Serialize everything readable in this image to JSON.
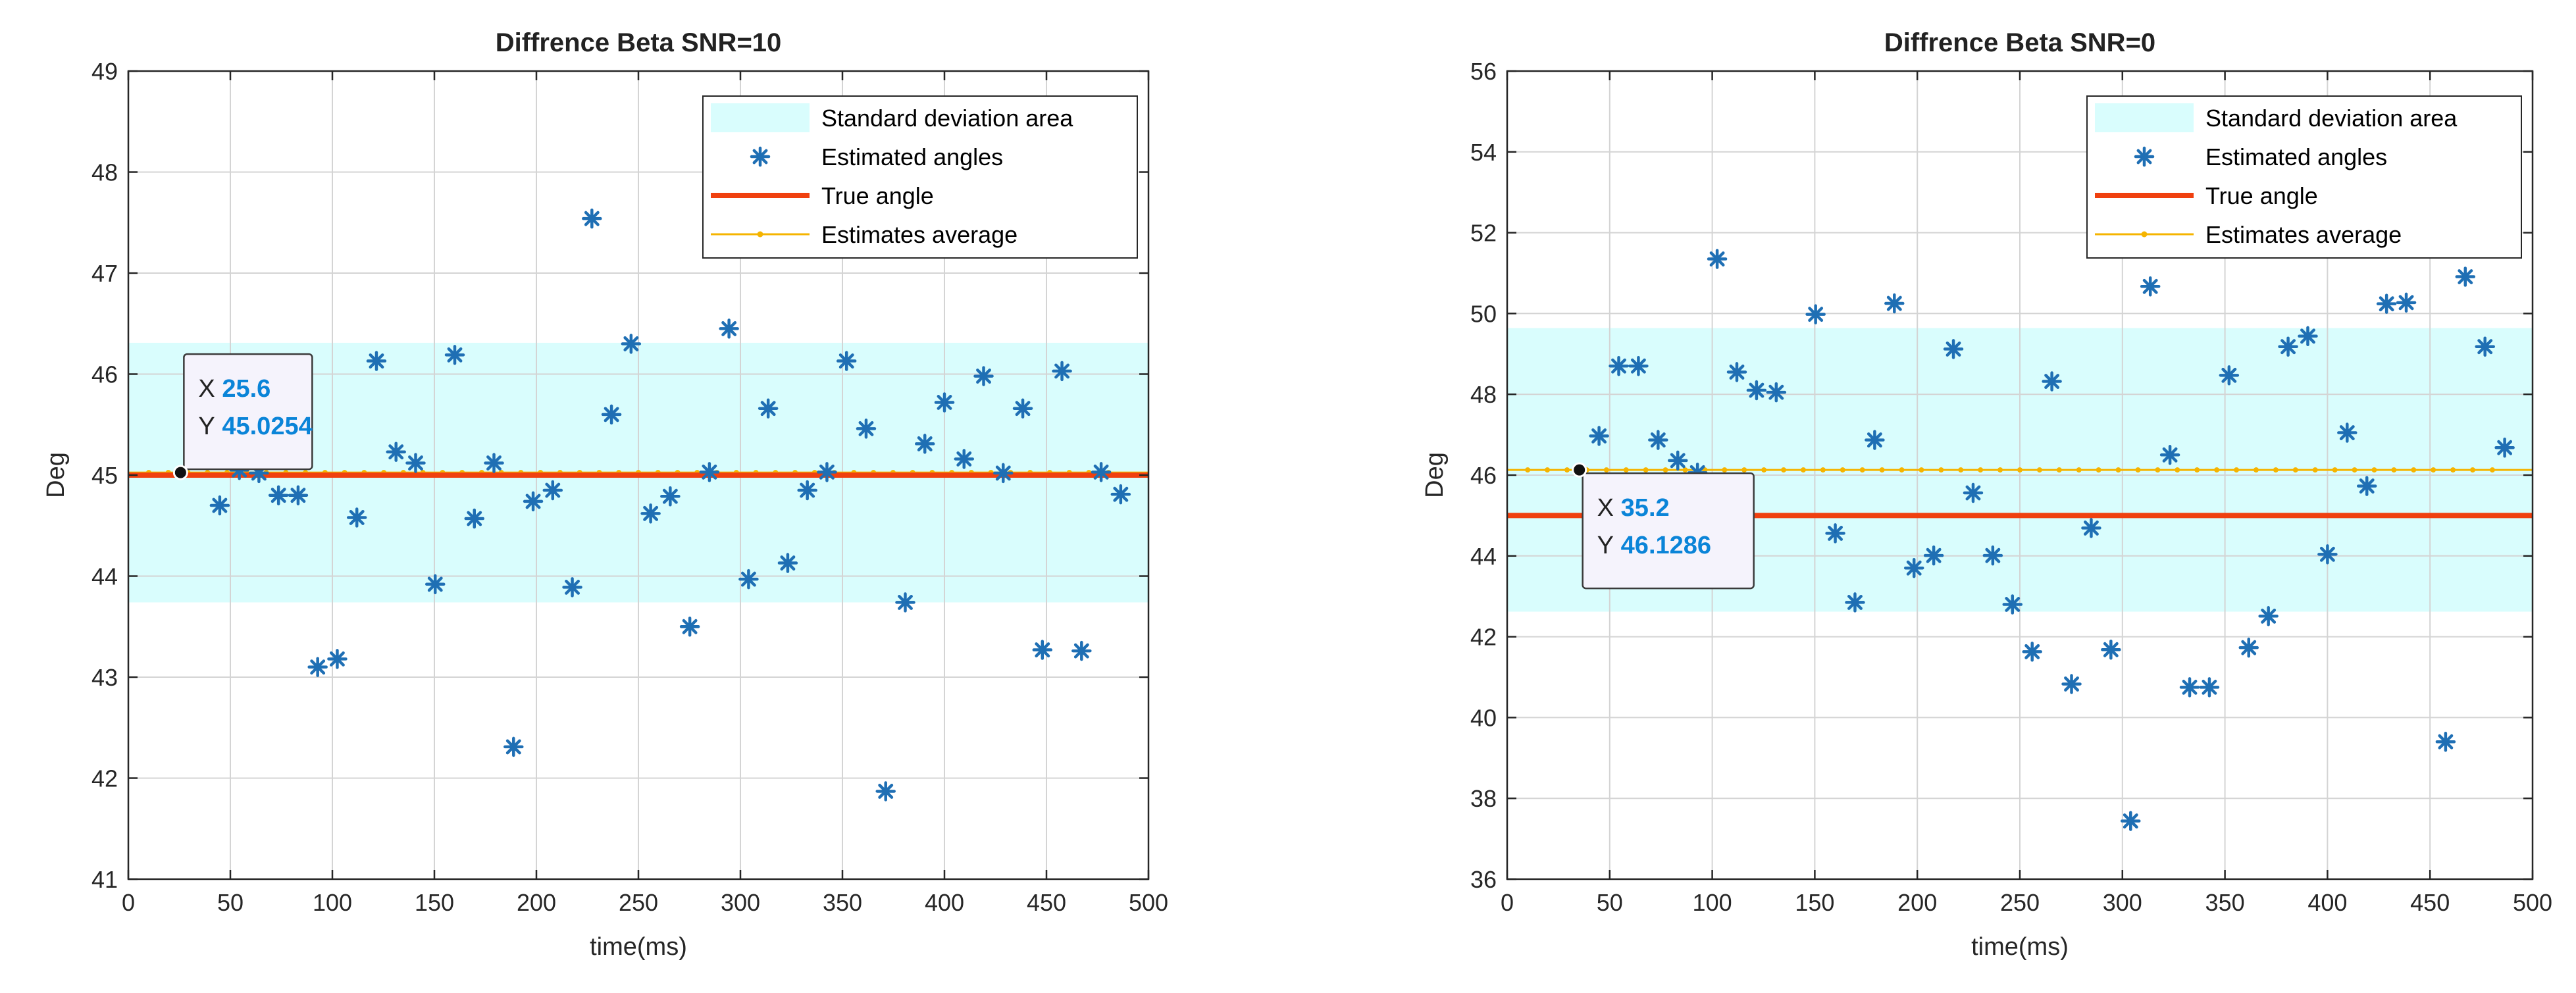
{
  "chart_data": [
    {
      "type": "scatter",
      "title": "Diffrence Beta SNR=10",
      "xlabel": "time(ms)",
      "ylabel": "Deg",
      "xlim": [
        0,
        500
      ],
      "ylim": [
        41,
        49
      ],
      "xticks": [
        "0",
        "50",
        "100",
        "150",
        "200",
        "250",
        "300",
        "350",
        "400",
        "450",
        "500"
      ],
      "yticks": [
        "41",
        "42",
        "43",
        "44",
        "45",
        "46",
        "47",
        "48",
        "49"
      ],
      "grid": true,
      "legend_position": "top-right",
      "legend": [
        "Standard deviation area",
        "Estimated angles",
        "True angle",
        "Estimates average"
      ],
      "std_band": [
        43.74,
        46.31
      ],
      "true_angle": 45,
      "estimates_average": 45.0254,
      "estimated_angles": {
        "x": [
          44.8,
          54.4,
          64,
          73.6,
          83.2,
          92.8,
          102.4,
          112,
          121.6,
          131.2,
          140.8,
          150.4,
          160,
          169.6,
          179.2,
          188.8,
          198.4,
          208,
          217.6,
          227.2,
          236.8,
          246.4,
          256,
          265.6,
          275.2,
          284.8,
          294.4,
          304,
          313.6,
          323.2,
          332.8,
          342.4,
          352,
          361.6,
          371.2,
          380.8,
          390.4,
          400,
          409.6,
          419.2,
          428.8,
          438.4,
          448,
          457.6,
          467.2,
          476.8,
          486.4
        ],
        "y": [
          44.7,
          45.05,
          45.02,
          44.8,
          44.8,
          43.1,
          43.18,
          44.58,
          46.13,
          45.23,
          45.12,
          43.92,
          46.19,
          44.57,
          45.12,
          42.31,
          44.74,
          44.85,
          43.89,
          47.54,
          45.6,
          46.3,
          44.62,
          44.79,
          43.5,
          45.03,
          46.45,
          43.97,
          45.66,
          44.13,
          44.85,
          45.03,
          46.13,
          45.46,
          41.87,
          43.74,
          45.31,
          45.72,
          45.16,
          45.98,
          45.02,
          45.66,
          43.27,
          46.03,
          43.26,
          45.03,
          44.81
        ]
      },
      "datatip": {
        "x_label": "X",
        "x_value": "25.6",
        "y_label": "Y",
        "y_value": "45.0254",
        "point_x": 25.6,
        "point_y": 45.0254
      }
    },
    {
      "type": "scatter",
      "title": "Diffrence Beta SNR=0",
      "xlabel": "time(ms)",
      "ylabel": "Deg",
      "xlim": [
        0,
        500
      ],
      "ylim": [
        36,
        56
      ],
      "xticks": [
        "0",
        "50",
        "100",
        "150",
        "200",
        "250",
        "300",
        "350",
        "400",
        "450",
        "500"
      ],
      "yticks": [
        "36",
        "38",
        "40",
        "42",
        "44",
        "46",
        "48",
        "50",
        "52",
        "54",
        "56"
      ],
      "grid": true,
      "legend_position": "top-right",
      "legend": [
        "Standard deviation area",
        "Estimated angles",
        "True angle",
        "Estimates average"
      ],
      "std_band": [
        42.62,
        49.64
      ],
      "true_angle": 45,
      "estimates_average": 46.1286,
      "estimated_angles": {
        "x": [
          44.8,
          54.4,
          64,
          73.6,
          83.2,
          92.8,
          102.4,
          112,
          121.6,
          131.2,
          150.4,
          160,
          169.6,
          179.2,
          188.8,
          198.4,
          208,
          217.6,
          227.2,
          236.8,
          246.4,
          256,
          265.6,
          275.2,
          284.8,
          294.4,
          304,
          313.6,
          323.2,
          332.8,
          342.4,
          352,
          361.6,
          371.2,
          380.8,
          390.4,
          400,
          409.6,
          419.2,
          428.8,
          438.4,
          457.6,
          467.2,
          476.8,
          486.4
        ],
        "y": [
          46.97,
          48.7,
          48.7,
          46.87,
          46.36,
          46.06,
          51.35,
          48.55,
          48.1,
          48.05,
          49.98,
          44.56,
          42.85,
          46.87,
          50.25,
          43.7,
          44.01,
          49.12,
          45.56,
          44.01,
          42.8,
          41.63,
          48.32,
          40.83,
          44.69,
          41.68,
          37.44,
          50.67,
          46.5,
          40.75,
          40.75,
          48.47,
          41.73,
          42.51,
          49.18,
          49.44,
          44.04,
          47.05,
          45.73,
          50.24,
          50.27,
          39.4,
          50.91,
          49.18,
          46.68
        ]
      },
      "datatip": {
        "x_label": "X",
        "x_value": "35.2",
        "y_label": "Y",
        "y_value": "46.1286",
        "point_x": 35.2,
        "point_y": 46.1286
      }
    }
  ],
  "colors": {
    "std_band_fill": "#d9fdfd",
    "estimated_marker": "#1f6fb4",
    "true_angle_line": "#f0400f",
    "average_line": "#f5b400",
    "grid": "#d4d4d4",
    "datatip_value": "#0a84d8"
  }
}
